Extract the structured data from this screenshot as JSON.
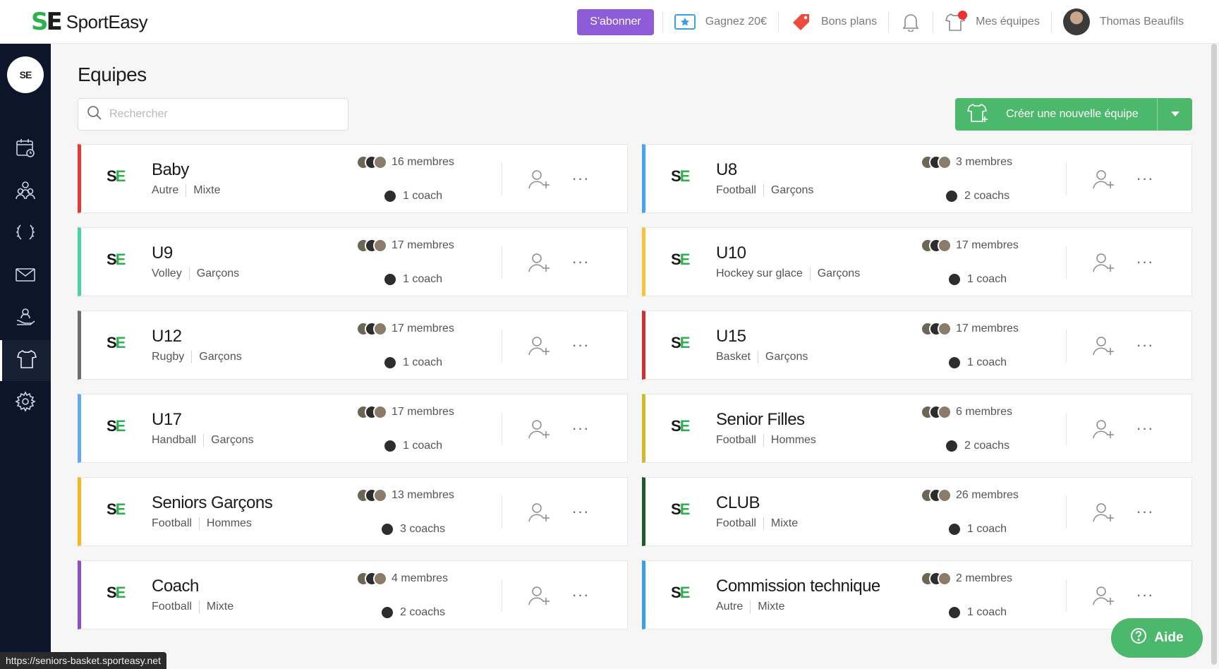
{
  "header": {
    "brand_letters_s": "S",
    "brand_letters_e": "E",
    "brand_name": "SportEasy",
    "subscribe_label": "S'abonner",
    "earn_label": "Gagnez 20€",
    "deals_label": "Bons plans",
    "teams_label": "Mes équipes",
    "user_name": "Thomas Beaufils"
  },
  "sidebar": {
    "logo_text": "SE",
    "items": [
      {
        "icon": "calendar-icon"
      },
      {
        "icon": "members-icon"
      },
      {
        "icon": "laurel-icon"
      },
      {
        "icon": "mail-icon"
      },
      {
        "icon": "hand-user-icon"
      },
      {
        "icon": "jersey-icon",
        "active": true
      },
      {
        "icon": "gear-icon"
      }
    ]
  },
  "page": {
    "title": "Equipes",
    "search_placeholder": "Rechercher",
    "create_label": "Créer une nouvelle équipe"
  },
  "teams": [
    {
      "name": "Baby",
      "sport": "Autre",
      "gender": "Mixte",
      "members": "16 membres",
      "coaches": "1 coach",
      "color": "#e53935"
    },
    {
      "name": "U8",
      "sport": "Football",
      "gender": "Garçons",
      "members": "3 membres",
      "coaches": "2 coachs",
      "color": "#42a5f5"
    },
    {
      "name": "U9",
      "sport": "Volley",
      "gender": "Garçons",
      "members": "17 membres",
      "coaches": "1 coach",
      "color": "#4cd2a0"
    },
    {
      "name": "U10",
      "sport": "Hockey sur glace",
      "gender": "Garçons",
      "members": "17 membres",
      "coaches": "1 coach",
      "color": "#f9c23c"
    },
    {
      "name": "U12",
      "sport": "Rugby",
      "gender": "Garçons",
      "members": "17 membres",
      "coaches": "1 coach",
      "color": "#6d6e72"
    },
    {
      "name": "U15",
      "sport": "Basket",
      "gender": "Garçons",
      "members": "17 membres",
      "coaches": "1 coach",
      "color": "#d32f2f"
    },
    {
      "name": "U17",
      "sport": "Handball",
      "gender": "Garçons",
      "members": "17 membres",
      "coaches": "1 coach",
      "color": "#64a8f0"
    },
    {
      "name": "Senior Filles",
      "sport": "Football",
      "gender": "Hommes",
      "members": "6 membres",
      "coaches": "2 coachs",
      "color": "#d8b62a"
    },
    {
      "name": "Seniors Garçons",
      "sport": "Football",
      "gender": "Hommes",
      "members": "13 membres",
      "coaches": "3 coachs",
      "color": "#f5b820"
    },
    {
      "name": "CLUB",
      "sport": "Football",
      "gender": "Mixte",
      "members": "26 membres",
      "coaches": "1 coach",
      "color": "#1f5a2a"
    },
    {
      "name": "Coach",
      "sport": "Football",
      "gender": "Mixte",
      "members": "4 membres",
      "coaches": "2 coachs",
      "color": "#8d4fc7"
    },
    {
      "name": "Commission technique",
      "sport": "Autre",
      "gender": "Mixte",
      "members": "2 membres",
      "coaches": "1 coach",
      "color": "#3aa0e6"
    }
  ],
  "help_label": "Aide",
  "status_url": "https://seniors-basket.sporteasy.net"
}
